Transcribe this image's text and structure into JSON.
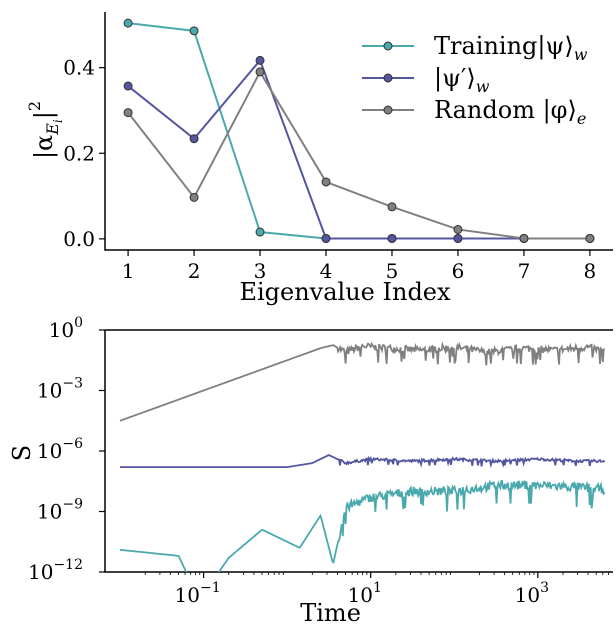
{
  "chart_data": [
    {
      "type": "line",
      "xlabel": "Eigenvalue Index",
      "ylabel": "|α_Ei|²",
      "ylabel_parts": {
        "base": "|α",
        "sub": "E",
        "subsub": "i",
        "tail": "|",
        "sup": "2"
      },
      "x": [
        1,
        2,
        3,
        4,
        5,
        6,
        7,
        8
      ],
      "xticks": [
        "1",
        "2",
        "3",
        "4",
        "5",
        "6",
        "7",
        "8"
      ],
      "yticks": [
        {
          "value": 0.0,
          "label": "0.0"
        },
        {
          "value": 0.2,
          "label": "0.2"
        },
        {
          "value": 0.4,
          "label": "0.4"
        }
      ],
      "xlim": [
        0.65,
        8.35
      ],
      "ylim": [
        -0.026,
        0.53
      ],
      "grid": false,
      "legend": "top-right",
      "series": [
        {
          "name": "Training|ψ⟩w",
          "name_parts": {
            "pre": "Training|ψ⟩",
            "sub": "w"
          },
          "color": "#4aa9ad",
          "values": [
            0.504,
            0.486,
            0.016,
            0.001,
            0.001,
            0.001,
            0.001,
            0.001
          ]
        },
        {
          "name": "|ψ′⟩w",
          "name_parts": {
            "pre": "|ψ′⟩",
            "sub": "w"
          },
          "color": "#5456a0",
          "values": [
            0.357,
            0.234,
            0.417,
            0.001,
            0.001,
            0.001,
            0.001,
            0.001
          ]
        },
        {
          "name": "Random |φ⟩e",
          "name_parts": {
            "pre": "Random |φ⟩",
            "sub": "e"
          },
          "color": "#808080",
          "values": [
            0.295,
            0.097,
            0.39,
            0.133,
            0.075,
            0.022,
            0.001,
            0.001
          ]
        }
      ]
    },
    {
      "type": "line",
      "xlabel": "Time",
      "ylabel": "S",
      "xscale": "log",
      "yscale": "log",
      "xlim_exp": [
        -2.18,
        3.9
      ],
      "ylim_exp": [
        -12,
        0
      ],
      "xticks": [
        {
          "base": "10",
          "exp": "−1",
          "value_exp": -1
        },
        {
          "base": "10",
          "exp": "1",
          "value_exp": 1
        },
        {
          "base": "10",
          "exp": "3",
          "value_exp": 3
        }
      ],
      "yticks": [
        {
          "base": "10",
          "exp": "0",
          "value_exp": 0
        },
        {
          "base": "10",
          "exp": "−3",
          "value_exp": -3
        },
        {
          "base": "10",
          "exp": "−6",
          "value_exp": -6
        },
        {
          "base": "10",
          "exp": "−9",
          "value_exp": -9
        },
        {
          "base": "10",
          "exp": "−12",
          "value_exp": -12
        }
      ],
      "grid": false,
      "series": [
        {
          "color": "#808080",
          "x_exp": [
            -2,
            -1,
            0,
            0.4,
            0.55,
            0.7,
            0.9,
            1.2,
            1.6,
            2.0,
            2.4,
            2.8,
            3.2,
            3.6,
            3.8
          ],
          "y_exp": [
            -4.5,
            -3.0,
            -1.5,
            -0.9,
            -0.75,
            -1.1,
            -0.8,
            -0.9,
            -1.0,
            -0.85,
            -1.1,
            -0.9,
            -1.0,
            -0.85,
            -1.05
          ]
        },
        {
          "color": "#5456a0",
          "x_exp": [
            -2,
            -1,
            0,
            0.3,
            0.5,
            0.7,
            1.0,
            1.5,
            2.0,
            2.5,
            3.0,
            3.5,
            3.8
          ],
          "y_exp": [
            -6.8,
            -6.8,
            -6.8,
            -6.6,
            -6.2,
            -6.6,
            -6.4,
            -6.5,
            -6.4,
            -6.5,
            -6.4,
            -6.5,
            -6.5
          ]
        },
        {
          "color": "#4aa9ad",
          "x_exp": [
            -2,
            -1.3,
            -1.15,
            -0.9,
            -0.7,
            -0.3,
            0.0,
            0.15,
            0.4,
            0.55,
            0.7,
            1.0,
            1.5,
            2.0,
            2.5,
            3.0,
            3.5,
            3.8
          ],
          "y_exp": [
            -10.9,
            -11.2,
            -12.5,
            -12.5,
            -11.3,
            -9.9,
            -10.5,
            -10.8,
            -9.2,
            -11.6,
            -8.8,
            -8.3,
            -8.0,
            -8.0,
            -7.7,
            -7.7,
            -7.8,
            -7.9
          ]
        }
      ]
    }
  ]
}
